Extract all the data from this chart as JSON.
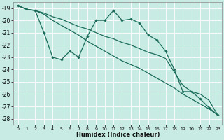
{
  "xlabel": "Humidex (Indice chaleur)",
  "bg_color": "#c8ece4",
  "grid_color": "#b0d8d0",
  "line_color": "#1a6b5a",
  "xlim": [
    -0.5,
    23.5
  ],
  "ylim": [
    -28.5,
    -18.5
  ],
  "yticks": [
    -28,
    -27,
    -26,
    -25,
    -24,
    -23,
    -22,
    -21,
    -20,
    -19
  ],
  "xticks": [
    0,
    1,
    2,
    3,
    4,
    5,
    6,
    7,
    8,
    9,
    10,
    11,
    12,
    13,
    14,
    15,
    16,
    17,
    18,
    19,
    20,
    21,
    22,
    23
  ],
  "line1_x": [
    0,
    1,
    2,
    3,
    4,
    5,
    6,
    7,
    8,
    9,
    10,
    11,
    12,
    13,
    14,
    15,
    16,
    17,
    18,
    19,
    20,
    21,
    22,
    23
  ],
  "line1_y": [
    -18.8,
    -19.1,
    -19.2,
    -21.0,
    -23.0,
    -23.2,
    -22.5,
    -23.0,
    -21.3,
    -20.0,
    -20.0,
    -19.2,
    -20.0,
    -19.9,
    -20.2,
    -21.2,
    -21.6,
    -22.5,
    -24.0,
    -25.8,
    -25.8,
    -26.4,
    -27.1,
    -27.7
  ],
  "line2_x": [
    0,
    1,
    2,
    3,
    4,
    5,
    6,
    7,
    8,
    9,
    10,
    11,
    12,
    13,
    14,
    15,
    16,
    17,
    18,
    19,
    20,
    21,
    22,
    23
  ],
  "line2_y": [
    -18.8,
    -19.1,
    -19.2,
    -19.4,
    -19.7,
    -19.9,
    -20.2,
    -20.5,
    -20.7,
    -21.0,
    -21.3,
    -21.5,
    -21.8,
    -22.0,
    -22.3,
    -22.6,
    -22.8,
    -23.1,
    -24.2,
    -25.3,
    -25.8,
    -26.0,
    -26.5,
    -27.7
  ],
  "line3_x": [
    0,
    1,
    2,
    3,
    4,
    5,
    6,
    7,
    8,
    9,
    10,
    11,
    12,
    13,
    14,
    15,
    16,
    17,
    18,
    19,
    20,
    21,
    22,
    23
  ],
  "line3_y": [
    -18.8,
    -19.1,
    -19.2,
    -19.5,
    -20.0,
    -20.4,
    -20.8,
    -21.2,
    -21.7,
    -22.1,
    -22.5,
    -22.9,
    -23.3,
    -23.6,
    -23.9,
    -24.3,
    -24.7,
    -25.1,
    -25.5,
    -26.0,
    -26.4,
    -26.8,
    -27.2,
    -27.7
  ]
}
